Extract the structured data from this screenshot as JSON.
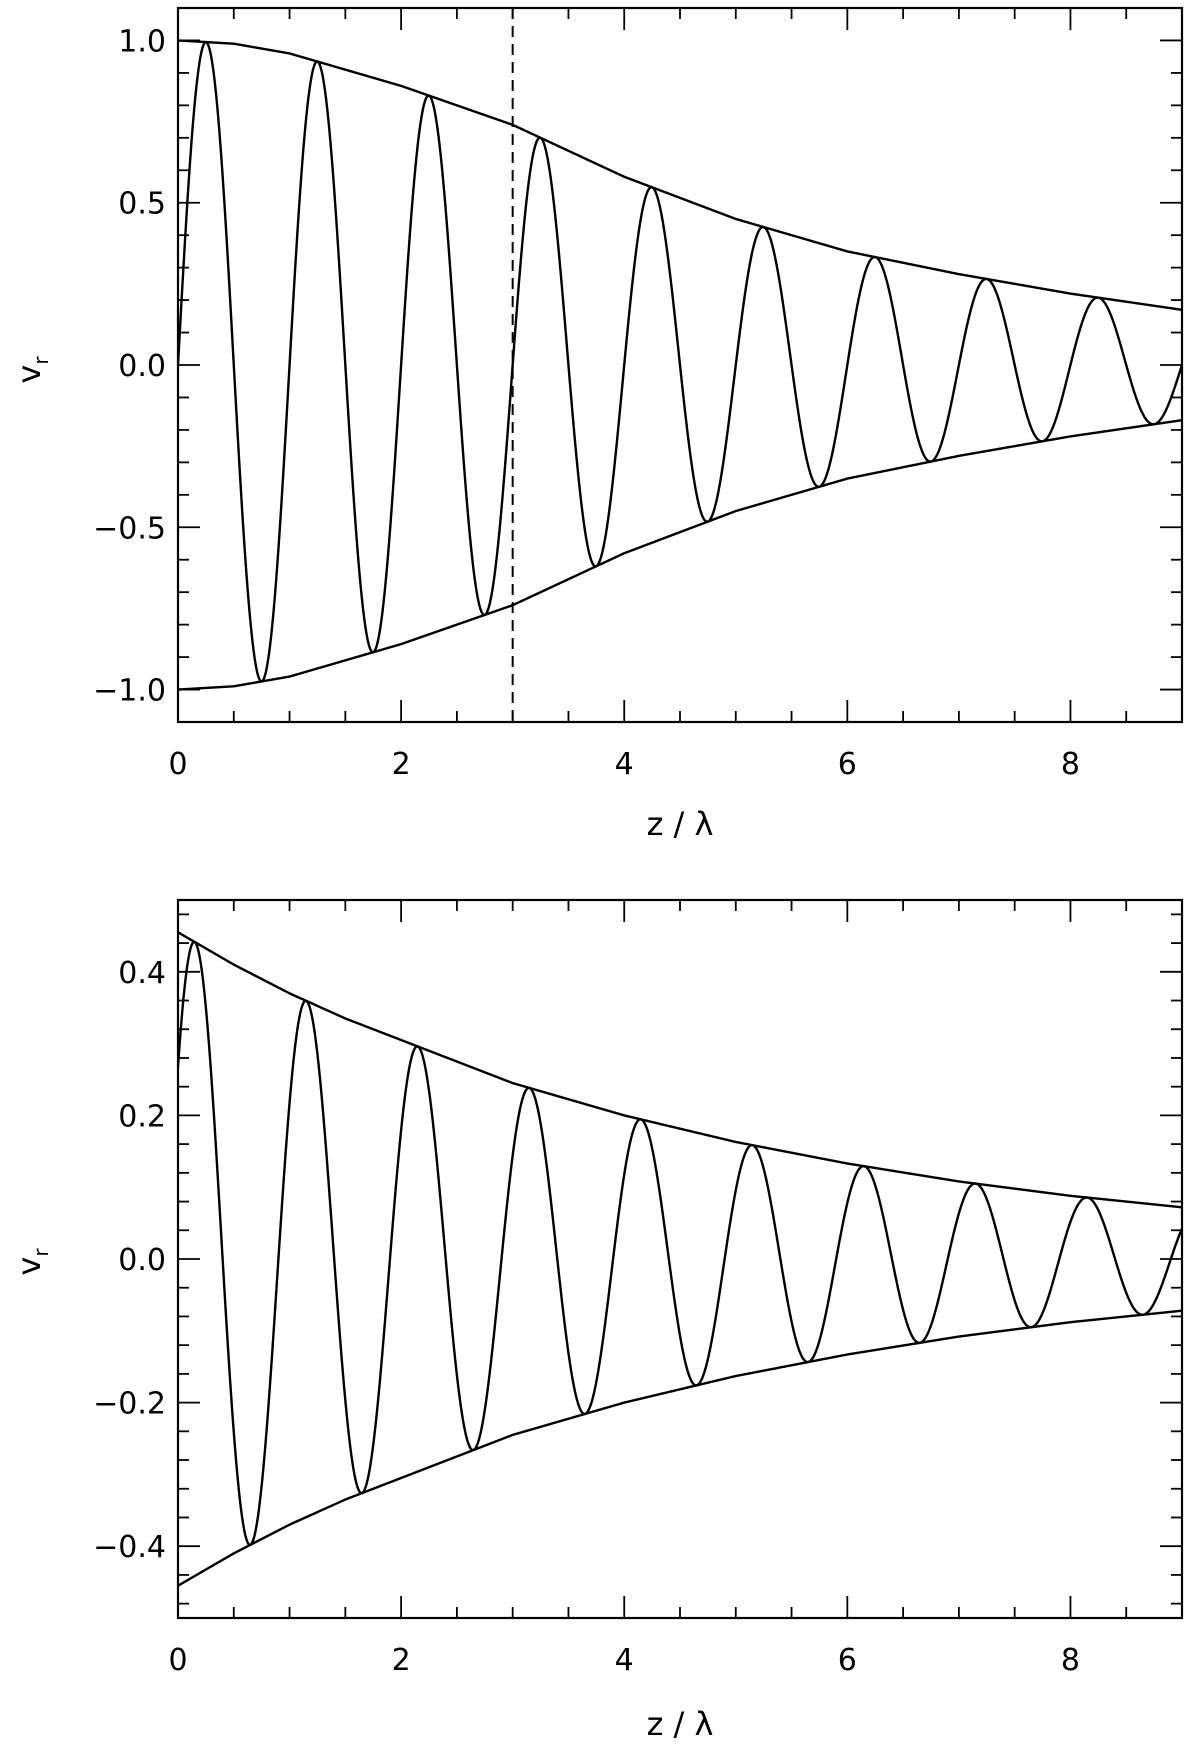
{
  "chart_data": [
    {
      "type": "line",
      "xlabel": "z / λ",
      "ylabel": "v",
      "ylabel_sub": "r",
      "xlim": [
        0,
        9
      ],
      "ylim": [
        -1.1,
        1.1
      ],
      "xticks": [
        0,
        2,
        4,
        6,
        8
      ],
      "xtick_labels": [
        "0",
        "2",
        "4",
        "6",
        "8"
      ],
      "yticks": [
        -1.0,
        -0.5,
        0.0,
        0.5,
        1.0
      ],
      "ytick_labels": [
        "−1.0",
        "−0.5",
        "0.0",
        "0.5",
        "1.0"
      ],
      "grid": false,
      "vertical_line_x": 3,
      "series": [
        {
          "role": "oscillation",
          "model": "envelope(z) * sin(2*pi*z)",
          "samples_z": [
            0,
            0.25,
            0.75,
            1.25,
            1.75,
            2.25,
            2.75,
            3.25,
            3.75,
            4.25,
            4.75,
            5.25,
            5.75,
            6.25,
            6.75,
            7.25,
            7.75,
            8.25,
            8.75,
            9
          ],
          "samples_v": [
            0,
            1.0,
            -0.97,
            0.94,
            -0.9,
            0.84,
            -0.77,
            0.7,
            -0.62,
            0.56,
            -0.5,
            0.44,
            -0.38,
            0.33,
            -0.29,
            0.26,
            -0.23,
            0.2,
            -0.18,
            0.07
          ]
        },
        {
          "role": "envelope",
          "z": [
            0,
            0.5,
            1,
            1.5,
            2,
            2.5,
            3,
            3.5,
            4,
            5,
            6,
            7,
            8,
            9
          ],
          "upper": [
            1.0,
            0.99,
            0.96,
            0.91,
            0.86,
            0.8,
            0.74,
            0.66,
            0.58,
            0.45,
            0.35,
            0.28,
            0.22,
            0.17
          ],
          "lower": [
            -1.0,
            -0.99,
            -0.96,
            -0.91,
            -0.86,
            -0.8,
            -0.74,
            -0.66,
            -0.58,
            -0.45,
            -0.35,
            -0.28,
            -0.22,
            -0.17
          ]
        }
      ]
    },
    {
      "type": "line",
      "xlabel": "z / λ",
      "ylabel": "v",
      "ylabel_sub": "r",
      "xlim": [
        0,
        9
      ],
      "ylim": [
        -0.5,
        0.5
      ],
      "xticks": [
        0,
        2,
        4,
        6,
        8
      ],
      "xtick_labels": [
        "0",
        "2",
        "4",
        "6",
        "8"
      ],
      "yticks": [
        -0.4,
        -0.2,
        0.0,
        0.2,
        0.4
      ],
      "ytick_labels": [
        "−0.4",
        "−0.2",
        "0.0",
        "0.2",
        "0.4"
      ],
      "grid": false,
      "series": [
        {
          "role": "oscillation",
          "model": "envelope(z) * sin(2*pi*(z - 0.15) + pi/2)",
          "samples_z": [
            0,
            0.15,
            0.6,
            1.1,
            1.6,
            2.1,
            2.6,
            3.1,
            3.6,
            4.1,
            4.55,
            5.05,
            5.55,
            6.05,
            6.55,
            7.05,
            7.5,
            8.0,
            8.5,
            9
          ],
          "samples_v": [
            0.38,
            0.45,
            -0.4,
            0.36,
            -0.32,
            0.29,
            -0.26,
            0.24,
            -0.21,
            0.2,
            -0.18,
            0.16,
            -0.15,
            0.13,
            -0.12,
            0.1,
            -0.09,
            0.08,
            -0.07,
            0.05
          ]
        },
        {
          "role": "envelope",
          "z": [
            0,
            0.5,
            1,
            1.5,
            2,
            3,
            4,
            5,
            6,
            7,
            8,
            9
          ],
          "upper": [
            0.455,
            0.41,
            0.37,
            0.335,
            0.305,
            0.245,
            0.2,
            0.163,
            0.133,
            0.108,
            0.088,
            0.072
          ],
          "lower": [
            -0.455,
            -0.41,
            -0.37,
            -0.335,
            -0.305,
            -0.245,
            -0.2,
            -0.163,
            -0.133,
            -0.108,
            -0.088,
            -0.072
          ]
        }
      ]
    }
  ]
}
